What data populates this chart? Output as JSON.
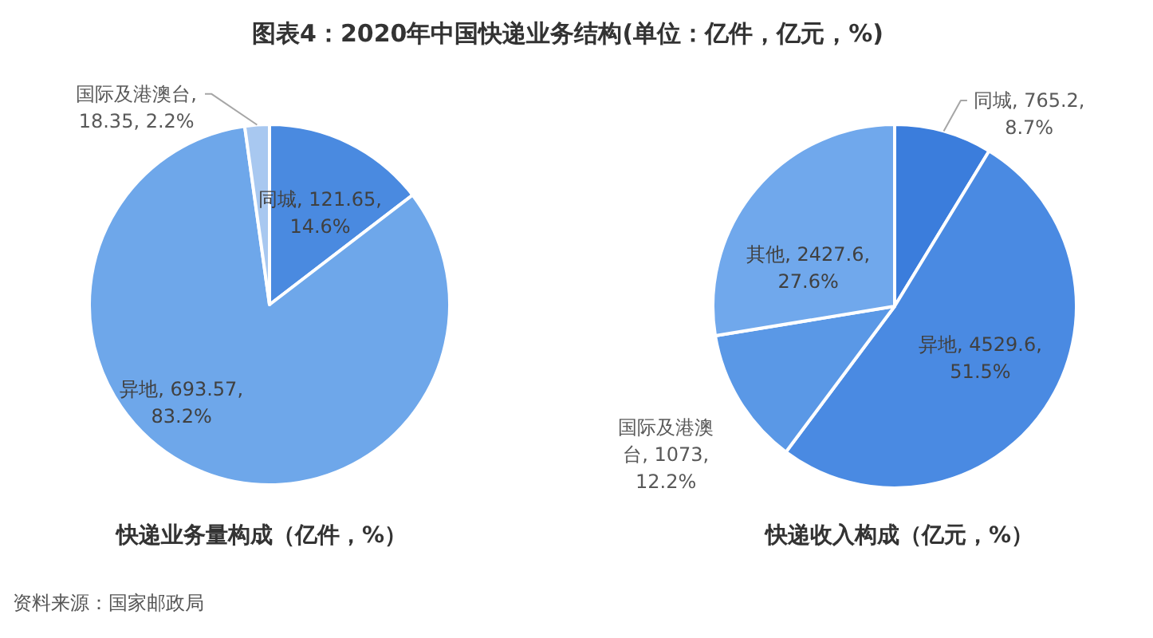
{
  "chart_data": [
    {
      "type": "pie",
      "title": "图表4：2020年中国快递业务结构(单位：亿件，亿元，%)",
      "subtitle": "快递业务量构成（亿件，%）",
      "categories": [
        "同城",
        "异地",
        "国际及港澳台"
      ],
      "values": [
        121.65,
        693.57,
        18.35
      ],
      "colors": [
        "#4a8ae0",
        "#6ea7ea",
        "#a8c8f0"
      ],
      "value_labels": [
        ", 121.65, 14.6%",
        ", 693.57, 83.2%",
        ", 18.35, 2.2%"
      ],
      "annotations": [
        "资料来源：国家邮政局"
      ]
    },
    {
      "type": "pie",
      "title": "快递收入构成（亿元，%）",
      "categories": [
        "同城",
        "异地",
        "国际及港澳台",
        "其他"
      ],
      "values": [
        765.2,
        4529.6,
        1073,
        2427.6
      ],
      "colors": [
        "#3b7ddc",
        "#4a8ae2",
        "#5a98e6",
        "#70a8ec"
      ],
      "value_labels": [
        ", 765.2, 8.7%",
        ", 4529.6, 51.5%",
        ", 1073, 12.2%",
        ", 2427.6, 27.6%"
      ]
    }
  ]
}
